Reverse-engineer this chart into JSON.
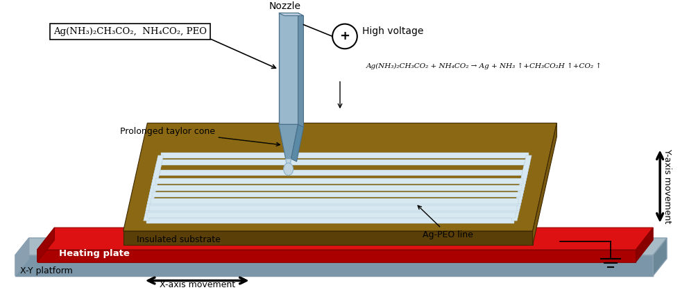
{
  "background_color": "#ffffff",
  "platform_top_color": "#a8bcc8",
  "platform_side_color": "#7a96a8",
  "platform_dark_color": "#6a8898",
  "heating_top_color": "#dd1111",
  "heating_side_color": "#aa0000",
  "heating_dark_color": "#880000",
  "substrate_top_color": "#8B6914",
  "substrate_side_color": "#5a4008",
  "substrate_right_color": "#7a5a10",
  "nozzle_main_color": "#9ab8cc",
  "nozzle_right_color": "#6a90aa",
  "nozzle_tip_color": "#7aa0b8",
  "cone_color": "#c0d4e0",
  "ag_line_color": "#d8e8f0",
  "box_label": "Ag(NH₃)₂CH₃CO₂,  NH₄CO₂, PEO",
  "nozzle_label": "Nozzle",
  "high_voltage_label": "High voltage",
  "reaction_eq": "Ag(NH₃)₂CH₃CO₂ + NH₄CO₂ → Ag + NH₃ ↑+CH₃CO₂H ↑+CO₂ ↑",
  "label_prolonged": "Prolonged taylor cone",
  "label_insulated": "Insulated substrate",
  "label_heating": "Heating plate",
  "label_platform": "X-Y platform",
  "label_agpeo": "Ag-PEO line",
  "label_xaxis": "X-axis movement",
  "label_yaxis": "Y-axis movement",
  "figsize": [
    9.8,
    4.18
  ],
  "dpi": 100
}
